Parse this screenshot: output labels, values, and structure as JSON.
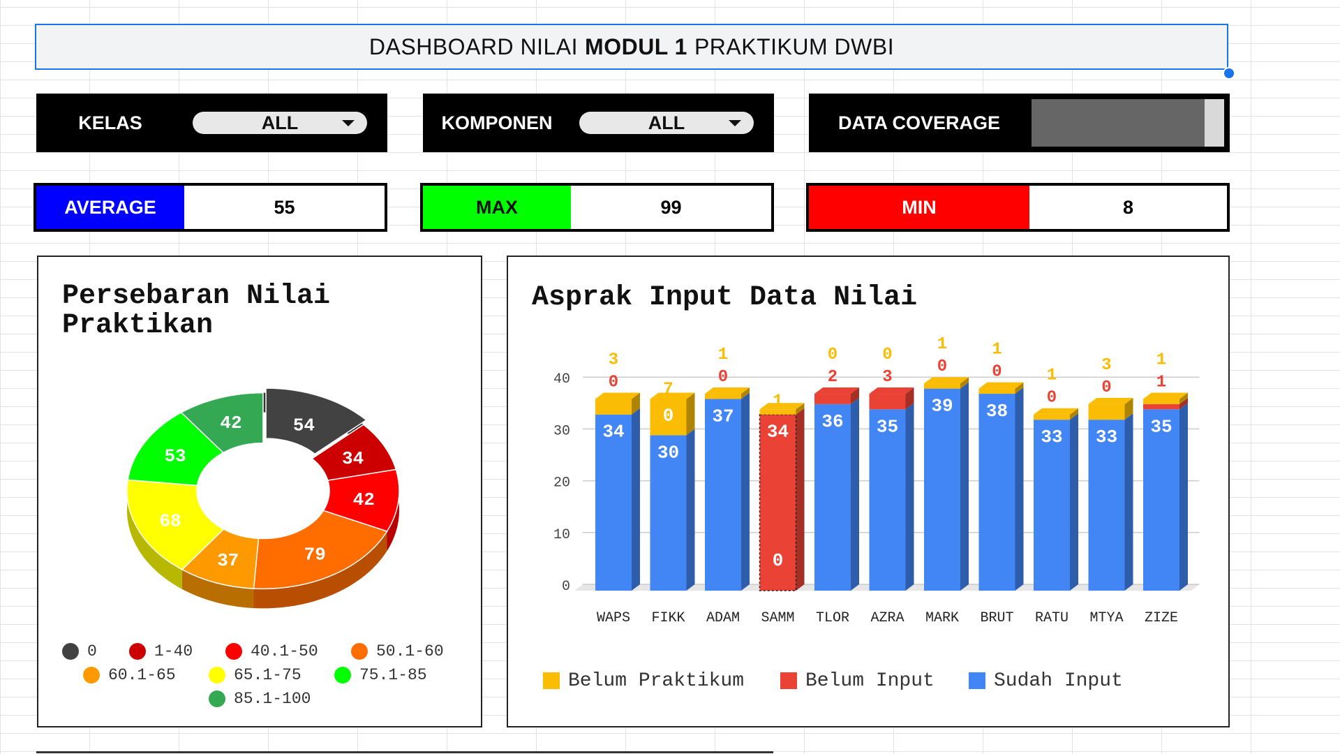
{
  "header": {
    "title_pre": "DASHBOARD NILAI",
    "title_bold": "MODUL 1",
    "title_post": "PRAKTIKUM DWBI"
  },
  "filters": {
    "kelas": {
      "label": "KELAS",
      "value": "ALL"
    },
    "komponen": {
      "label": "KOMPONEN",
      "value": "ALL"
    },
    "coverage": {
      "label": "DATA COVERAGE",
      "fraction": 0.9
    }
  },
  "stats": {
    "average": {
      "label": "AVERAGE",
      "value": "55",
      "color": "#0000ff"
    },
    "max": {
      "label": "MAX",
      "value": "99",
      "color": "#00ff00"
    },
    "min": {
      "label": "MIN",
      "value": "8",
      "color": "#ff0000"
    }
  },
  "chart_data": [
    {
      "type": "pie",
      "title": "Persebaran Nilai Praktikan",
      "labels": [
        "0",
        "1-40",
        "40.1-50",
        "50.1-60",
        "60.1-65",
        "65.1-75",
        "75.1-85",
        "85.1-100"
      ],
      "values": [
        54,
        34,
        42,
        79,
        37,
        68,
        53,
        42
      ],
      "colors": [
        "#424242",
        "#cc0000",
        "#ff0000",
        "#ff6d01",
        "#ff9900",
        "#ffff00",
        "#00ff00",
        "#34a853"
      ],
      "legend": "bottom"
    },
    {
      "type": "bar",
      "stacked": true,
      "title": "Asprak Input Data Nilai",
      "categories": [
        "WAPS",
        "FIKK",
        "ADAM",
        "SAMM",
        "TLOR",
        "AZRA",
        "MARK",
        "BRUT",
        "RATU",
        "MTYA",
        "ZIZE"
      ],
      "series": [
        {
          "name": "Sudah Input",
          "values": [
            34,
            30,
            37,
            0,
            36,
            35,
            39,
            38,
            33,
            33,
            35
          ],
          "color": "#4285f4"
        },
        {
          "name": "Belum Input",
          "values": [
            0,
            0,
            0,
            34,
            2,
            3,
            0,
            0,
            0,
            0,
            1
          ],
          "color": "#ea4335"
        },
        {
          "name": "Belum Praktikum",
          "values": [
            3,
            7,
            1,
            1,
            0,
            0,
            1,
            1,
            1,
            3,
            1
          ],
          "color": "#fbbc04"
        }
      ],
      "yticks": [
        "0",
        "10",
        "20",
        "30",
        "40"
      ],
      "ylim": [
        0,
        40
      ],
      "grid": true,
      "legend": "bottom"
    }
  ]
}
